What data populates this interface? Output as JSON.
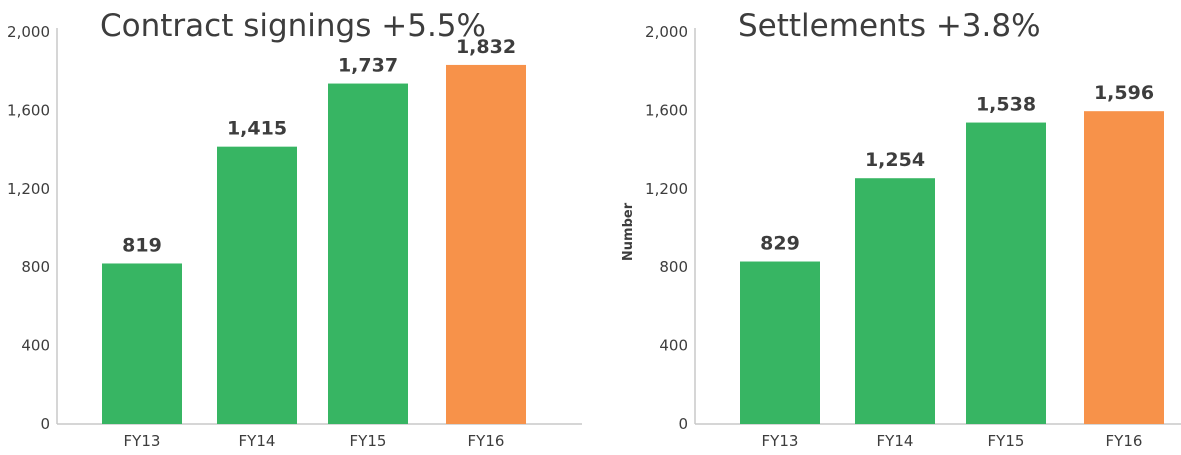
{
  "chart_data": [
    {
      "type": "bar",
      "title": "Contract signings +5.5%",
      "xlabel": "",
      "ylabel": "",
      "categories": [
        "FY13",
        "FY14",
        "FY15",
        "FY16"
      ],
      "values": [
        819,
        1415,
        1737,
        1832
      ],
      "value_labels": [
        "819",
        "1,415",
        "1,737",
        "1,832"
      ],
      "ylim": [
        0,
        2000
      ],
      "yticks": [
        0,
        400,
        800,
        1200,
        1600,
        2000
      ],
      "ytick_labels": [
        "0",
        "400",
        "800",
        "1,200",
        "1,600",
        "2,000"
      ],
      "grid": false,
      "highlight_category": "FY16"
    },
    {
      "type": "bar",
      "title": "Settlements +3.8%",
      "xlabel": "",
      "ylabel": "Number",
      "categories": [
        "FY13",
        "FY14",
        "FY15",
        "FY16"
      ],
      "values": [
        829,
        1254,
        1538,
        1596
      ],
      "value_labels": [
        "829",
        "1,254",
        "1,538",
        "1,596"
      ],
      "ylim": [
        0,
        2000
      ],
      "yticks": [
        0,
        400,
        800,
        1200,
        1600,
        2000
      ],
      "ytick_labels": [
        "0",
        "400",
        "800",
        "1,200",
        "1,600",
        "2,000"
      ],
      "grid": false,
      "highlight_category": "FY16"
    }
  ],
  "colors": {
    "bar": "#37b563",
    "highlight": "#f7924a",
    "axis": "#c8c8c8",
    "text": "#3d3d3d"
  }
}
